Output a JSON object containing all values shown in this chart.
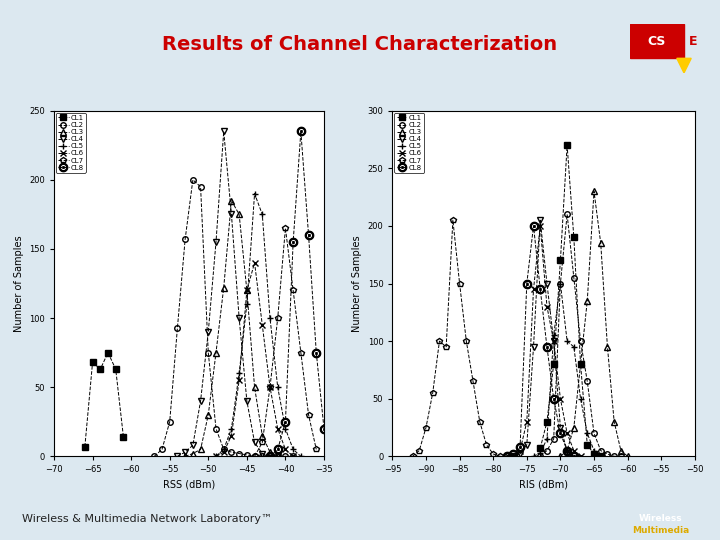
{
  "title": "Results of Channel Characterization",
  "title_color": "#cc0000",
  "bg_color": "#dce8f0",
  "plot_bg": "#ffffff",
  "footer_text": "Wireless & Multimedia Network Laboratory™",
  "left_plot": {
    "xlabel": "RSS (dBm)",
    "ylabel": "Number of Samples",
    "xlim": [
      -70,
      -35
    ],
    "ylim": [
      0,
      250
    ],
    "xticks": [
      -70,
      -65,
      -60,
      -55,
      -50,
      -45,
      -40,
      -35
    ],
    "yticks": [
      0,
      50,
      100,
      150,
      200,
      250
    ],
    "series": [
      {
        "label": "CL1",
        "marker": "s",
        "filled": true,
        "x": [
          -66,
          -65,
          -64,
          -63,
          -62,
          -61
        ],
        "y": [
          7,
          68,
          63,
          75,
          63,
          14
        ]
      },
      {
        "label": "CL2",
        "marker": "o",
        "filled": false,
        "x": [
          -57,
          -56,
          -55,
          -54,
          -53,
          -52,
          -51,
          -50,
          -49,
          -48,
          -47,
          -46,
          -45,
          -44,
          -43,
          -42,
          -41,
          -40,
          -39
        ],
        "y": [
          0,
          5,
          25,
          93,
          157,
          200,
          195,
          75,
          20,
          5,
          3,
          2,
          1,
          0,
          0,
          0,
          0,
          0,
          0
        ]
      },
      {
        "label": "CL3",
        "marker": "^",
        "filled": false,
        "x": [
          -53,
          -52,
          -51,
          -50,
          -49,
          -48,
          -47,
          -46,
          -45,
          -44,
          -43,
          -42,
          -41
        ],
        "y": [
          0,
          2,
          5,
          30,
          75,
          122,
          185,
          175,
          120,
          50,
          15,
          3,
          0
        ]
      },
      {
        "label": "CL4",
        "marker": "v",
        "filled": false,
        "x": [
          -54,
          -53,
          -52,
          -51,
          -50,
          -49,
          -48,
          -47,
          -46,
          -45,
          -44,
          -43,
          -42,
          -41
        ],
        "y": [
          0,
          3,
          8,
          40,
          90,
          155,
          235,
          175,
          100,
          40,
          10,
          2,
          0,
          0
        ]
      },
      {
        "label": "CL5",
        "marker": "+",
        "filled": false,
        "x": [
          -49,
          -48,
          -47,
          -46,
          -45,
          -44,
          -43,
          -42,
          -41,
          -40,
          -39,
          -38
        ],
        "y": [
          0,
          5,
          20,
          60,
          110,
          190,
          175,
          100,
          50,
          20,
          5,
          0
        ]
      },
      {
        "label": "CL6",
        "marker": "x",
        "filled": false,
        "x": [
          -49,
          -48,
          -47,
          -46,
          -45,
          -44,
          -43,
          -42,
          -41,
          -40,
          -39
        ],
        "y": [
          0,
          3,
          15,
          55,
          120,
          140,
          95,
          50,
          20,
          5,
          0
        ]
      },
      {
        "label": "CL7",
        "marker": "p",
        "filled": false,
        "x": [
          -44,
          -43,
          -42,
          -41,
          -40,
          -39,
          -38,
          -37,
          -36
        ],
        "y": [
          0,
          10,
          50,
          100,
          165,
          120,
          75,
          30,
          5
        ]
      },
      {
        "label": "CL8",
        "marker": "o",
        "filled": false,
        "x": [
          -42,
          -41,
          -40,
          -39,
          -38,
          -37,
          -36,
          -35
        ],
        "y": [
          0,
          5,
          25,
          155,
          235,
          160,
          75,
          20
        ],
        "special": true
      }
    ]
  },
  "right_plot": {
    "xlabel": "RIS (dBm)",
    "ylabel": "Number of Samples",
    "xlim": [
      -95,
      -50
    ],
    "ylim": [
      0,
      300
    ],
    "xticks": [
      -95,
      -90,
      -85,
      -80,
      -75,
      -70,
      -65,
      -60,
      -55,
      -50
    ],
    "yticks": [
      0,
      50,
      100,
      150,
      200,
      250,
      300
    ],
    "series": [
      {
        "label": "CL1",
        "marker": "s",
        "filled": true,
        "x": [
          -73,
          -72,
          -71,
          -70,
          -69,
          -68,
          -67,
          -66,
          -65,
          -64
        ],
        "y": [
          7,
          30,
          80,
          170,
          270,
          190,
          80,
          10,
          2,
          0
        ]
      },
      {
        "label": "CL2",
        "marker": "o",
        "filled": false,
        "x": [
          -73,
          -72,
          -71,
          -70,
          -69,
          -68,
          -67,
          -66,
          -65,
          -64,
          -63,
          -62,
          -61
        ],
        "y": [
          0,
          5,
          15,
          150,
          210,
          155,
          100,
          65,
          20,
          5,
          2,
          0,
          0
        ]
      },
      {
        "label": "CL3",
        "marker": "^",
        "filled": false,
        "x": [
          -70,
          -69,
          -68,
          -67,
          -66,
          -65,
          -64,
          -63,
          -62,
          -61,
          -60
        ],
        "y": [
          0,
          5,
          25,
          80,
          135,
          230,
          185,
          95,
          30,
          5,
          0
        ]
      },
      {
        "label": "CL4",
        "marker": "v",
        "filled": false,
        "x": [
          -77,
          -76,
          -75,
          -74,
          -73,
          -72,
          -71,
          -70,
          -69,
          -68
        ],
        "y": [
          0,
          2,
          10,
          95,
          205,
          150,
          100,
          25,
          5,
          0
        ]
      },
      {
        "label": "CL5",
        "marker": "+",
        "filled": false,
        "x": [
          -74,
          -73,
          -72,
          -71,
          -70,
          -69,
          -68,
          -67,
          -66,
          -65,
          -64
        ],
        "y": [
          0,
          3,
          15,
          105,
          150,
          100,
          95,
          50,
          20,
          5,
          0
        ]
      },
      {
        "label": "CL6",
        "marker": "x",
        "filled": false,
        "x": [
          -77,
          -76,
          -75,
          -74,
          -73,
          -72,
          -71,
          -70,
          -69,
          -68,
          -67
        ],
        "y": [
          0,
          5,
          30,
          145,
          200,
          130,
          100,
          50,
          20,
          5,
          0
        ]
      },
      {
        "label": "CL7",
        "marker": "p",
        "filled": false,
        "x": [
          -92,
          -91,
          -90,
          -89,
          -88,
          -87,
          -86,
          -85,
          -84,
          -83,
          -82,
          -81,
          -80,
          -79,
          -78
        ],
        "y": [
          0,
          5,
          25,
          55,
          100,
          95,
          205,
          150,
          100,
          65,
          30,
          10,
          2,
          0,
          0
        ]
      },
      {
        "label": "CL8",
        "marker": "o",
        "filled": false,
        "x": [
          -78,
          -77,
          -76,
          -75,
          -74,
          -73,
          -72,
          -71,
          -70,
          -69,
          -68
        ],
        "y": [
          0,
          2,
          8,
          150,
          200,
          145,
          95,
          50,
          20,
          5,
          0
        ],
        "special": true
      }
    ]
  }
}
